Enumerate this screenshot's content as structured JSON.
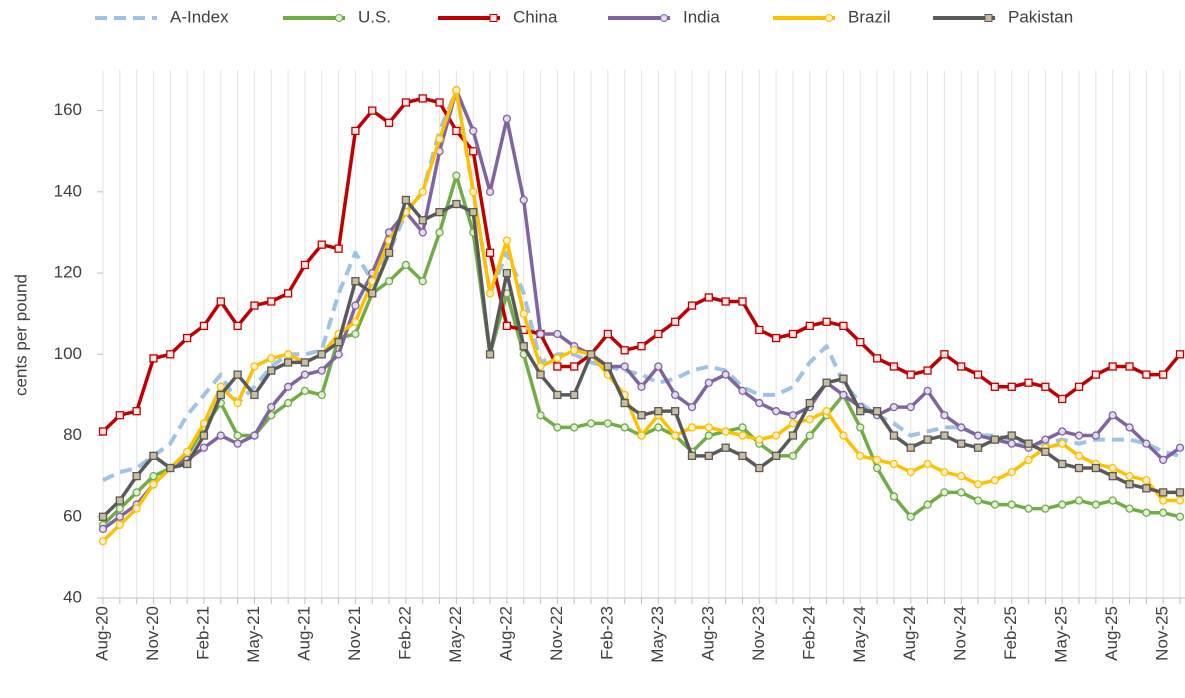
{
  "chart_data": {
    "type": "line",
    "y_label": "cents per pound",
    "ylim": [
      40,
      170
    ],
    "yticks": [
      40,
      60,
      80,
      100,
      120,
      140,
      160
    ],
    "grid": true,
    "legend": "top",
    "categories": [
      "Aug-20",
      null,
      null,
      "Nov-20",
      null,
      null,
      "Feb-21",
      null,
      null,
      "May-21",
      null,
      null,
      "Aug-21",
      null,
      null,
      "Nov-21",
      null,
      null,
      "Feb-22",
      null,
      null,
      "May-22",
      null,
      null,
      "Aug-22",
      null,
      null,
      "Nov-22",
      null,
      null,
      "Feb-23",
      null,
      null,
      "May-23",
      null,
      null,
      "Aug-23",
      null,
      null,
      "Nov-23",
      null,
      null,
      "Feb-24",
      null,
      null,
      "May-24",
      null,
      null,
      "Aug-24",
      null,
      null,
      "Nov-24",
      null,
      null,
      "Feb-25",
      null,
      null,
      "May-25",
      null,
      null,
      "Aug-25",
      null,
      null,
      "Nov-25",
      null
    ],
    "series": [
      {
        "name": "A-Index",
        "color": "#9dc3e6",
        "dashed": true,
        "marker": "none",
        "values": [
          69,
          71,
          72,
          75,
          78,
          85,
          90,
          95,
          88,
          92,
          97,
          100,
          100,
          101,
          115,
          125,
          118,
          125,
          135,
          140,
          155,
          165,
          140,
          115,
          125,
          115,
          98,
          100,
          100,
          98,
          97,
          96,
          95,
          93,
          94,
          96,
          97,
          96,
          92,
          90,
          90,
          92,
          98,
          102,
          93,
          88,
          85,
          83,
          80,
          81,
          82,
          82,
          80,
          80,
          79,
          78,
          78,
          79,
          78,
          79,
          79,
          79,
          78,
          76,
          75
        ]
      },
      {
        "name": "U.S.",
        "color": "#70ad47",
        "marker": "circle",
        "marker_fill": "#e2efd9",
        "values": [
          58,
          62,
          66,
          70,
          72,
          75,
          82,
          88,
          80,
          80,
          85,
          88,
          91,
          90,
          104,
          105,
          115,
          118,
          122,
          118,
          130,
          144,
          130,
          100,
          115,
          100,
          85,
          82,
          82,
          83,
          83,
          82,
          80,
          82,
          80,
          76,
          80,
          81,
          82,
          78,
          75,
          75,
          80,
          85,
          90,
          82,
          72,
          65,
          60,
          63,
          66,
          66,
          64,
          63,
          63,
          62,
          62,
          63,
          64,
          63,
          64,
          62,
          61,
          61,
          60
        ]
      },
      {
        "name": "China",
        "color": "#c00000",
        "marker": "square",
        "marker_fill": "#fbe5e5",
        "values": [
          81,
          85,
          86,
          99,
          100,
          104,
          107,
          113,
          107,
          112,
          113,
          115,
          122,
          127,
          126,
          155,
          160,
          157,
          162,
          163,
          162,
          155,
          150,
          125,
          107,
          106,
          105,
          97,
          97,
          100,
          105,
          101,
          102,
          105,
          108,
          112,
          114,
          113,
          113,
          106,
          104,
          105,
          107,
          108,
          107,
          103,
          99,
          97,
          95,
          96,
          100,
          97,
          95,
          92,
          92,
          93,
          92,
          89,
          92,
          95,
          97,
          97,
          95,
          95,
          100
        ]
      },
      {
        "name": "India",
        "color": "#8064a2",
        "marker": "circle",
        "marker_fill": "#e4dcee",
        "values": [
          57,
          60,
          63,
          68,
          72,
          74,
          77,
          80,
          78,
          80,
          87,
          92,
          95,
          96,
          100,
          112,
          120,
          130,
          135,
          130,
          150,
          165,
          155,
          140,
          158,
          138,
          105,
          105,
          102,
          100,
          97,
          97,
          92,
          97,
          90,
          87,
          93,
          95,
          91,
          88,
          86,
          85,
          87,
          93,
          90,
          87,
          85,
          87,
          87,
          91,
          85,
          82,
          80,
          79,
          78,
          77,
          79,
          81,
          80,
          80,
          85,
          82,
          78,
          74,
          77
        ]
      },
      {
        "name": "Brazil",
        "color": "#ffc000",
        "marker": "circle",
        "marker_fill": "#fff2cc",
        "values": [
          54,
          58,
          62,
          68,
          72,
          76,
          83,
          92,
          88,
          97,
          99,
          100,
          98,
          100,
          105,
          108,
          118,
          128,
          135,
          140,
          153,
          165,
          140,
          115,
          128,
          110,
          97,
          99,
          101,
          100,
          95,
          90,
          80,
          85,
          80,
          82,
          82,
          81,
          80,
          79,
          80,
          83,
          84,
          86,
          80,
          75,
          74,
          73,
          71,
          73,
          71,
          70,
          68,
          69,
          71,
          74,
          77,
          78,
          75,
          73,
          72,
          70,
          69,
          64,
          64
        ]
      },
      {
        "name": "Pakistan",
        "color": "#595959",
        "marker": "square",
        "marker_fill": "#c9bf9f",
        "values": [
          60,
          64,
          70,
          75,
          72,
          73,
          80,
          90,
          95,
          90,
          96,
          98,
          98,
          100,
          103,
          118,
          115,
          125,
          138,
          133,
          135,
          137,
          135,
          100,
          120,
          102,
          95,
          90,
          90,
          100,
          97,
          88,
          85,
          86,
          86,
          75,
          75,
          77,
          75,
          72,
          75,
          80,
          88,
          93,
          94,
          86,
          86,
          80,
          77,
          79,
          80,
          78,
          77,
          79,
          80,
          78,
          76,
          73,
          72,
          72,
          70,
          68,
          67,
          66,
          66
        ]
      }
    ]
  }
}
